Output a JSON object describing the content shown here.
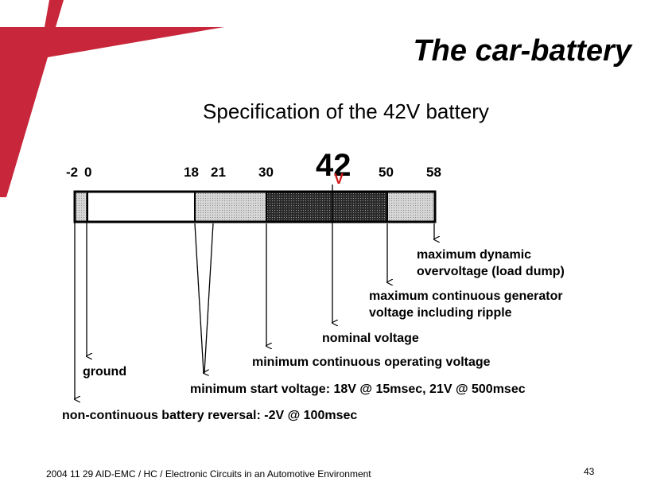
{
  "slide": {
    "title": "The car-battery",
    "subtitle": "Specification of the 42V battery",
    "footer": "2004 11 29 AID-EMC / HC / Electronic Circuits in an Automotive Environment",
    "page_number": "43"
  },
  "colors": {
    "logo_red": "#c8263a",
    "segment_white": "#ffffff",
    "segment_light": "#c8c8c8",
    "segment_dark": "#3a3a3a",
    "logo_v_red": "#d01818"
  },
  "logo_42v": {
    "digits": "42",
    "unit": "V"
  },
  "scale": {
    "ticks": [
      "-2",
      "0",
      "18",
      "21",
      "30",
      "50",
      "58"
    ]
  },
  "annotations": {
    "max_dynamic_line1": "maximum dynamic",
    "max_dynamic_line2": "overvoltage  (load dump)",
    "max_continuous_line1": "maximum continuous generator",
    "max_continuous_line2": "voltage including ripple",
    "nominal": "nominal voltage",
    "ground": "ground",
    "min_operating": "minimum continuous operating voltage",
    "min_start": "minimum start voltage: 18V @ 15msec,  21V @ 500msec",
    "reversal": "non-continuous battery reversal: -2V @ 100msec"
  }
}
